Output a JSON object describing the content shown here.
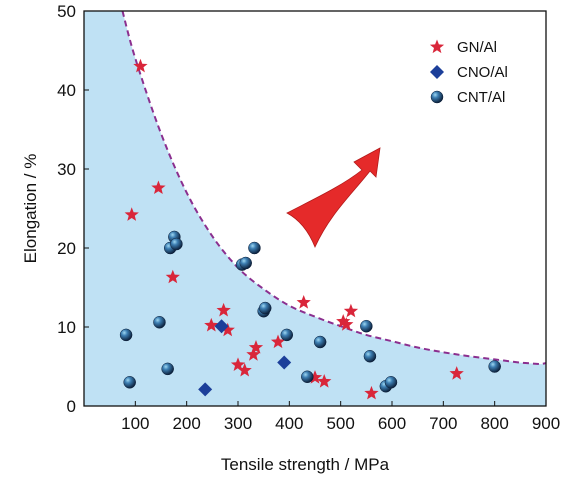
{
  "chart_data": {
    "type": "scatter",
    "xlabel": "Tensile strength / MPa",
    "ylabel": "Elongation / %",
    "xlim": [
      0,
      900
    ],
    "ylim": [
      0,
      50
    ],
    "xticks": [
      100,
      200,
      300,
      400,
      500,
      600,
      700,
      800,
      900
    ],
    "yticks": [
      0,
      10,
      20,
      30,
      40,
      50
    ],
    "grid": false,
    "legend_position": "top-right",
    "boundary_curve": {
      "style": "dashed",
      "color": "#8b2f8f",
      "fill_below": "#bfe1f4",
      "points": [
        [
          75,
          50
        ],
        [
          100,
          44
        ],
        [
          150,
          34.5
        ],
        [
          200,
          27
        ],
        [
          250,
          21.5
        ],
        [
          300,
          17.5
        ],
        [
          350,
          14.8
        ],
        [
          400,
          12.7
        ],
        [
          450,
          11.3
        ],
        [
          500,
          10.1
        ],
        [
          550,
          9
        ],
        [
          600,
          8.2
        ],
        [
          650,
          7.4
        ],
        [
          700,
          6.8
        ],
        [
          750,
          6.3
        ],
        [
          800,
          5.9
        ],
        [
          850,
          5.5
        ],
        [
          890,
          5.3
        ]
      ]
    },
    "arrow": {
      "color": "#e52a2a",
      "direction": "up-right"
    },
    "series": [
      {
        "name": "GN/Al",
        "marker": "star",
        "color": "#d9263a",
        "points": [
          [
            110,
            43
          ],
          [
            93,
            24.2
          ],
          [
            145,
            27.6
          ],
          [
            173,
            16.3
          ],
          [
            248,
            10.2
          ],
          [
            272,
            12.1
          ],
          [
            280,
            9.6
          ],
          [
            300,
            5.2
          ],
          [
            313,
            4.5
          ],
          [
            330,
            6.5
          ],
          [
            335,
            7.4
          ],
          [
            378,
            8.1
          ],
          [
            428,
            13.1
          ],
          [
            450,
            3.6
          ],
          [
            468,
            3.1
          ],
          [
            505,
            10.7
          ],
          [
            511,
            10.3
          ],
          [
            520,
            12
          ],
          [
            560,
            1.6
          ],
          [
            726,
            4.1
          ]
        ]
      },
      {
        "name": "CNO/Al",
        "marker": "diamond",
        "color": "#1c3f9a",
        "points": [
          [
            236,
            2.1
          ],
          [
            268,
            10.1
          ],
          [
            390,
            5.5
          ]
        ]
      },
      {
        "name": "CNT/Al",
        "marker": "sphere",
        "color": "#1b3a63",
        "points": [
          [
            82,
            9
          ],
          [
            89,
            3
          ],
          [
            147,
            10.6
          ],
          [
            163,
            4.7
          ],
          [
            168,
            20
          ],
          [
            176,
            21.4
          ],
          [
            180,
            20.5
          ],
          [
            308,
            17.9
          ],
          [
            315,
            18.1
          ],
          [
            332,
            20
          ],
          [
            350,
            12
          ],
          [
            353,
            12.4
          ],
          [
            395,
            9
          ],
          [
            435,
            3.7
          ],
          [
            460,
            8.1
          ],
          [
            550,
            10.1
          ],
          [
            557,
            6.3
          ],
          [
            588,
            2.5
          ],
          [
            598,
            3
          ],
          [
            800,
            5
          ]
        ]
      }
    ]
  }
}
